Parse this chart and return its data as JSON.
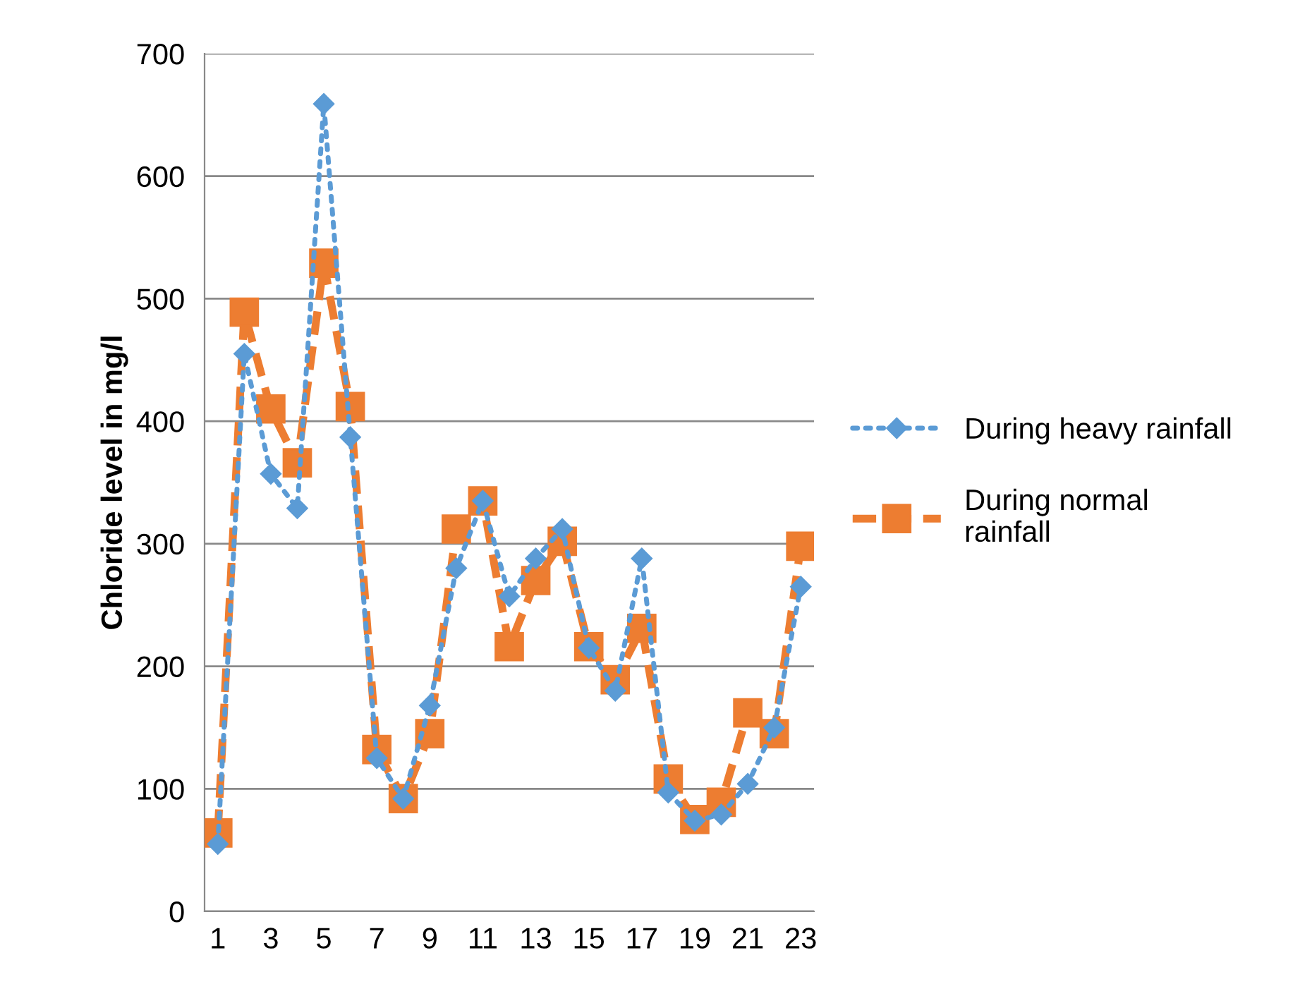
{
  "chart_data": {
    "type": "line",
    "ylabel": "Chloride level in mg/l",
    "categories": [
      "1",
      null,
      "3",
      null,
      "5",
      null,
      "7",
      null,
      "9",
      null,
      "11",
      null,
      "13",
      null,
      "15",
      null,
      "17",
      null,
      "19",
      null,
      "21",
      null,
      "23"
    ],
    "series": [
      {
        "name": "During heavy rainfall",
        "color": "#5b9bd5",
        "marker": "diamond",
        "line_style": "dotted",
        "values": [
          55,
          455,
          357,
          329,
          659,
          387,
          125,
          92,
          168,
          280,
          335,
          257,
          288,
          312,
          215,
          180,
          288,
          97,
          74,
          79,
          104,
          150,
          265
        ]
      },
      {
        "name": "During normal rainfall",
        "color": "#ed7d31",
        "marker": "square",
        "line_style": "dashed",
        "values": [
          64,
          489,
          410,
          366,
          529,
          412,
          132,
          92,
          145,
          312,
          335,
          216,
          270,
          302,
          216,
          189,
          231,
          108,
          75,
          89,
          162,
          145,
          298
        ]
      }
    ],
    "ylim": [
      0,
      700
    ],
    "yticks": [
      0,
      100,
      200,
      300,
      400,
      500,
      600,
      700
    ],
    "grid": "y",
    "legend": "right"
  }
}
